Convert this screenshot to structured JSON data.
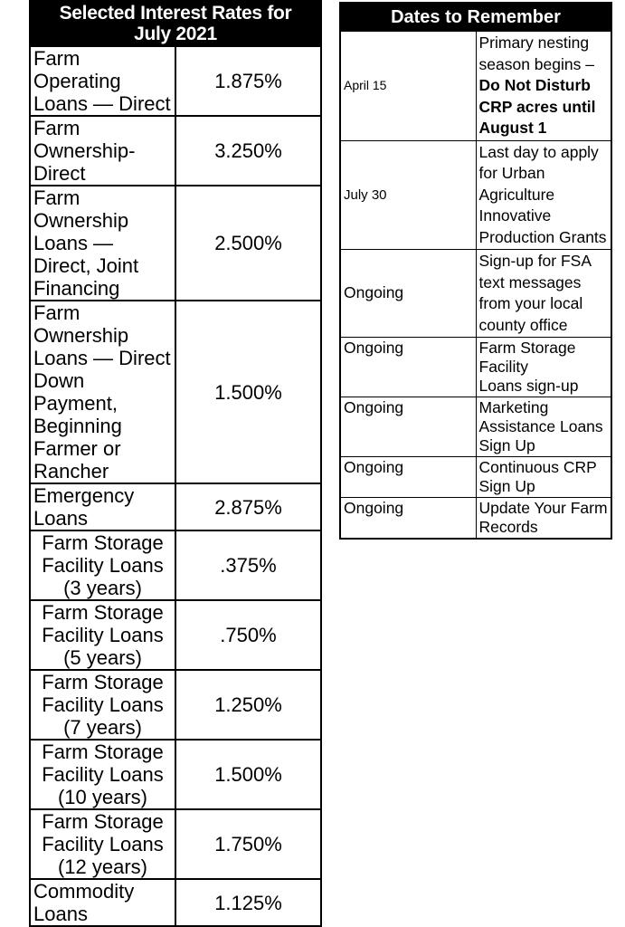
{
  "rates_table": {
    "title": "Selected Interest Rates for July 2021",
    "rows": [
      {
        "label": "Farm Operating Loans — Direct",
        "rate": "1.875%"
      },
      {
        "label": "Farm Ownership-Direct",
        "rate": "3.250%"
      },
      {
        "label": "Farm Ownership Loans — Direct, Joint Financing",
        "rate": "2.500%"
      },
      {
        "label": "Farm Ownership Loans — Direct Down Payment, Beginning Farmer or Rancher",
        "rate": "1.500%"
      },
      {
        "label": "Emergency Loans",
        "rate": "2.875%"
      },
      {
        "label": "Farm Storage Facility Loans (3 years)",
        "rate": ".375%"
      },
      {
        "label": "Farm Storage Facility Loans (5 years)",
        "rate": ".750%"
      },
      {
        "label": "Farm Storage Facility Loans (7 years)",
        "rate": "1.250%"
      },
      {
        "label": "Farm Storage Facility Loans (10 years)",
        "rate": "1.500%"
      },
      {
        "label": "Farm Storage Facility Loans (12 years)",
        "rate": "1.750%"
      },
      {
        "label": "Commodity Loans",
        "rate": "1.125%"
      }
    ]
  },
  "dates_table": {
    "title": "Dates to Remember",
    "rows": [
      {
        "date": "April 15",
        "desc_regular": "Primary nesting season begins – ",
        "desc_bold": "Do Not Disturb CRP acres until August 1"
      },
      {
        "date": "July 30",
        "desc": "Last day to apply for Urban Agriculture Innovative Production Grants"
      },
      {
        "date": "Ongoing",
        "desc": "Sign-up for FSA text messages from your local county office"
      },
      {
        "date": "Ongoing",
        "desc": "Farm Storage Facility\nLoans sign-up"
      },
      {
        "date": "Ongoing",
        "desc": "Marketing Assistance Loans Sign Up"
      },
      {
        "date": "Ongoing",
        "desc": "Continuous CRP Sign Up"
      },
      {
        "date": "Ongoing",
        "desc": "Update Your Farm Records"
      }
    ]
  },
  "colors": {
    "header_bg": "#000000",
    "header_text": "#ffffff",
    "body_text": "#000000",
    "border": "#000000",
    "background": "#ffffff"
  }
}
